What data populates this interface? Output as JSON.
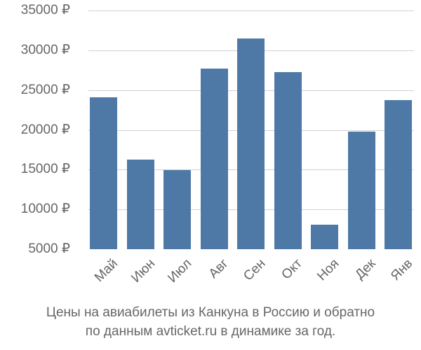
{
  "chart_data": {
    "type": "bar",
    "title": "Цены на авиабилеты из Канкуна в Россию и обратно по данным avticket.ru в динамике за год.",
    "xlabel": "",
    "ylabel": "",
    "categories": [
      "Май",
      "Июн",
      "Июл",
      "Авг",
      "Сен",
      "Окт",
      "Ноя",
      "Дек",
      "Янв"
    ],
    "values": [
      24100,
      16300,
      14900,
      27700,
      31500,
      27300,
      8100,
      19800,
      23700
    ],
    "ylim": [
      5000,
      35000
    ],
    "yticks": [
      35000,
      30000,
      25000,
      20000,
      15000,
      10000,
      5000
    ],
    "ytick_labels": [
      "35000 ₽",
      "30000 ₽",
      "25000 ₽",
      "20000 ₽",
      "15000 ₽",
      "10000 ₽",
      "5000 ₽"
    ],
    "grid": true,
    "legend": null,
    "bar_color": "#4e79a7"
  },
  "caption": {
    "line1": "Цены на авиабилеты из Канкуна в Россию и обратно",
    "line2": "по данным avticket.ru в динамике за год."
  }
}
